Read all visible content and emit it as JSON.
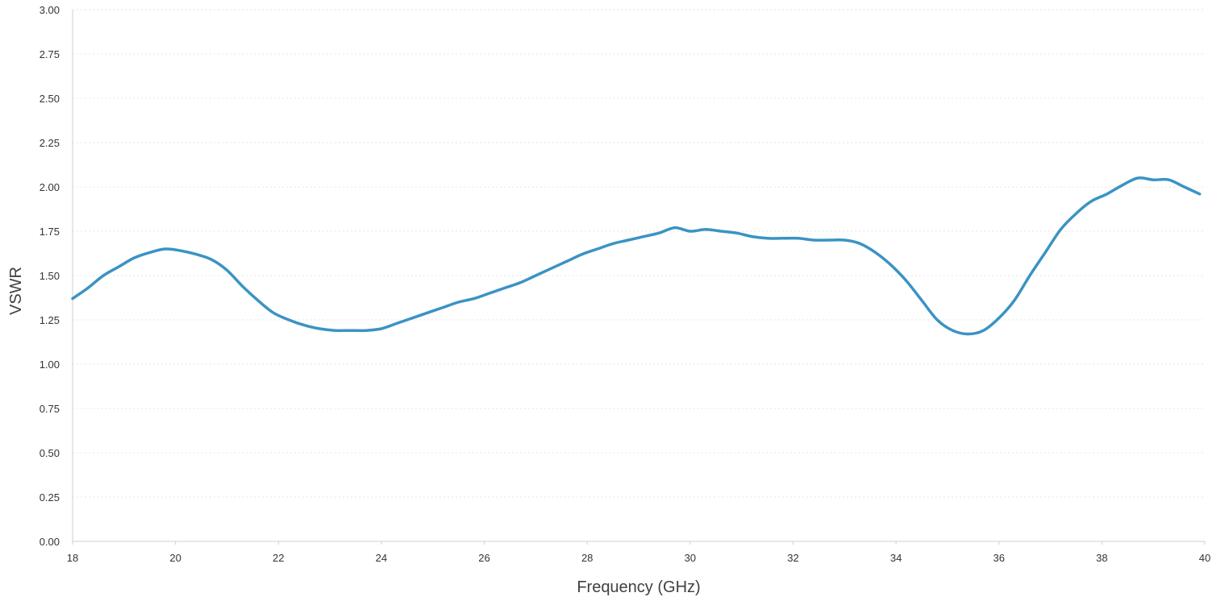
{
  "chart_data": {
    "type": "line",
    "title": "",
    "xlabel": "Frequency (GHz)",
    "ylabel": "VSWR",
    "xlim": [
      18,
      40
    ],
    "ylim": [
      0,
      3
    ],
    "x_ticks": [
      18,
      20,
      22,
      24,
      26,
      28,
      30,
      32,
      34,
      36,
      38,
      40
    ],
    "y_ticks": [
      0,
      0.25,
      0.5,
      0.75,
      1.0,
      1.25,
      1.5,
      1.75,
      2.0,
      2.25,
      2.5,
      2.75,
      3.0
    ],
    "x_tick_labels": [
      "18",
      "20",
      "22",
      "24",
      "26",
      "28",
      "30",
      "32",
      "34",
      "36",
      "38",
      "40"
    ],
    "y_tick_labels": [
      "0.00",
      "0.25",
      "0.50",
      "0.75",
      "1.00",
      "1.25",
      "1.50",
      "1.75",
      "2.00",
      "2.25",
      "2.50",
      "2.75",
      "3.00"
    ],
    "grid": true,
    "legend": "none",
    "series": [
      {
        "color": "#3a93c3",
        "x": [
          18.0,
          18.3,
          18.6,
          18.9,
          19.2,
          19.5,
          19.8,
          20.1,
          20.4,
          20.7,
          21.0,
          21.3,
          21.6,
          21.9,
          22.2,
          22.5,
          22.8,
          23.1,
          23.4,
          23.7,
          24.0,
          24.3,
          24.6,
          24.9,
          25.2,
          25.5,
          25.8,
          26.1,
          26.4,
          26.7,
          27.0,
          27.3,
          27.6,
          27.9,
          28.2,
          28.5,
          28.8,
          29.1,
          29.4,
          29.7,
          30.0,
          30.3,
          30.6,
          30.9,
          31.2,
          31.5,
          31.8,
          32.1,
          32.4,
          32.7,
          33.0,
          33.3,
          33.6,
          33.9,
          34.2,
          34.5,
          34.8,
          35.1,
          35.4,
          35.7,
          36.0,
          36.3,
          36.6,
          36.9,
          37.2,
          37.5,
          37.8,
          38.1,
          38.4,
          38.7,
          39.0,
          39.3,
          39.6,
          39.9
        ],
        "y": [
          1.37,
          1.43,
          1.5,
          1.55,
          1.6,
          1.63,
          1.65,
          1.64,
          1.62,
          1.59,
          1.53,
          1.44,
          1.36,
          1.29,
          1.25,
          1.22,
          1.2,
          1.19,
          1.19,
          1.19,
          1.2,
          1.23,
          1.26,
          1.29,
          1.32,
          1.35,
          1.37,
          1.4,
          1.43,
          1.46,
          1.5,
          1.54,
          1.58,
          1.62,
          1.65,
          1.68,
          1.7,
          1.72,
          1.74,
          1.77,
          1.75,
          1.76,
          1.75,
          1.74,
          1.72,
          1.71,
          1.71,
          1.71,
          1.7,
          1.7,
          1.7,
          1.68,
          1.63,
          1.56,
          1.47,
          1.36,
          1.25,
          1.19,
          1.17,
          1.19,
          1.26,
          1.36,
          1.5,
          1.63,
          1.76,
          1.85,
          1.92,
          1.96,
          2.01,
          2.05,
          2.04,
          2.04,
          2.0,
          1.96
        ]
      }
    ]
  }
}
